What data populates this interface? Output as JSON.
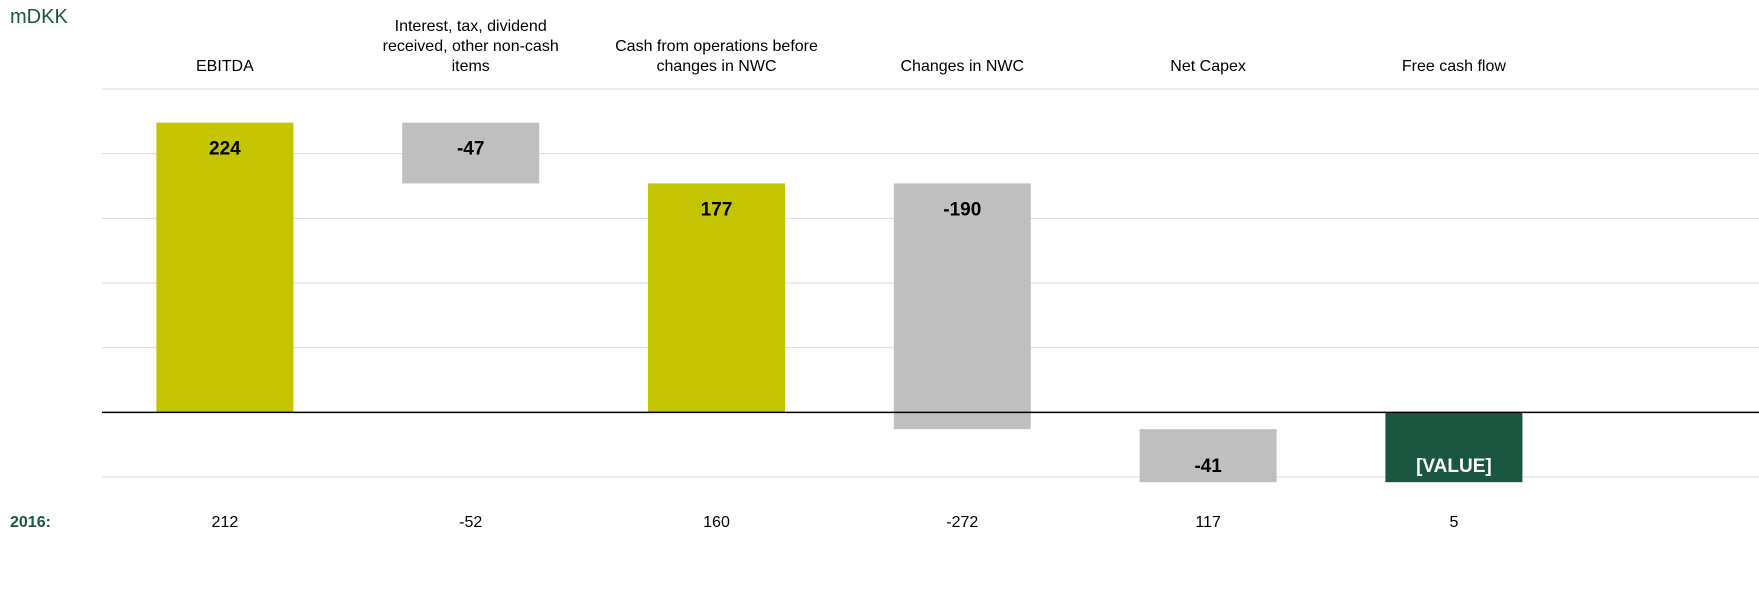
{
  "chart_data": {
    "type": "waterfall",
    "unit_label": "mDKK",
    "categories": [
      "EBITDA",
      "Interest, tax, dividend received, other non-cash items",
      "Cash from operations before changes in NWC",
      "Changes in NWC",
      "Net Capex",
      "Free cash flow"
    ],
    "values": [
      224,
      -47,
      177,
      -190,
      -41,
      -54
    ],
    "value_labels": [
      "224",
      "-47",
      "177",
      "-190",
      "-41",
      "[VALUE]"
    ],
    "measures": [
      "total",
      "relative",
      "total",
      "relative",
      "relative",
      "total"
    ],
    "colors": [
      "#c4c400",
      "#bfbfbf",
      "#c4c400",
      "#bfbfbf",
      "#bfbfbf",
      "#1a5640"
    ],
    "ylim": [
      -50,
      250
    ],
    "yticks": [
      -50,
      0,
      50,
      100,
      150,
      200,
      250
    ],
    "grid": true,
    "comparison": {
      "label": "2016:",
      "values": [
        212,
        -52,
        160,
        -272,
        117,
        5
      ]
    }
  }
}
